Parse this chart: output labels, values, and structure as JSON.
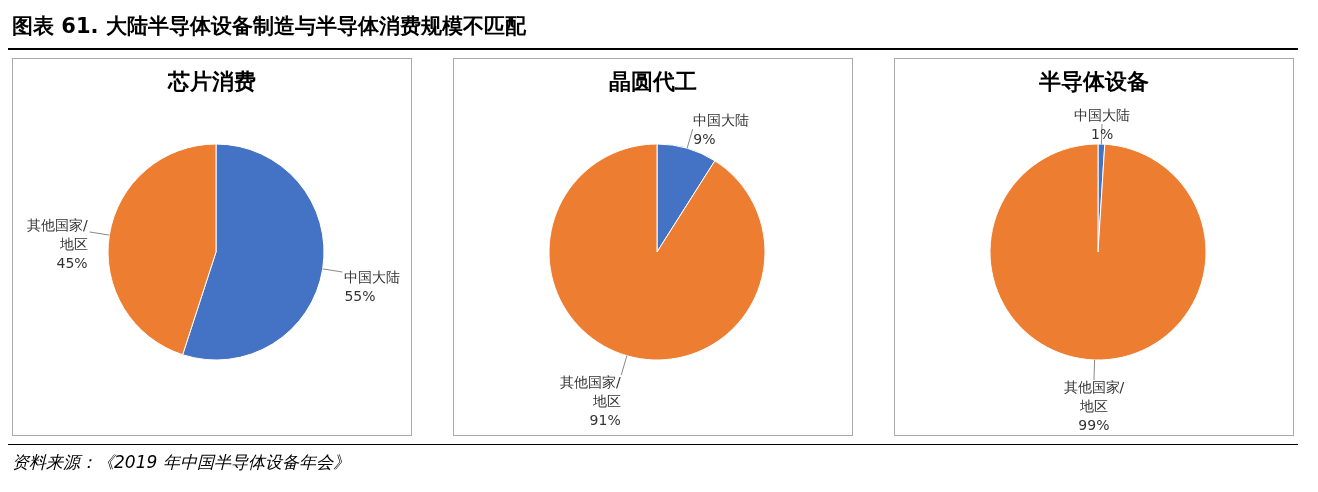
{
  "chart_data": [
    {
      "type": "pie",
      "title": "芯片消费",
      "categories": [
        "中国大陆",
        "其他国家/地区"
      ],
      "values": [
        55,
        45
      ],
      "value_labels": [
        "55%",
        "45%"
      ],
      "colors": [
        "#4472c4",
        "#ed7d31"
      ],
      "legend": false,
      "annotations": [
        "图表 61. 大陆半导体设备制造与半导体消费规模不匹配"
      ]
    },
    {
      "type": "pie",
      "title": "晶圆代工",
      "categories": [
        "中国大陆",
        "其他国家/地区"
      ],
      "values": [
        9,
        91
      ],
      "value_labels": [
        "9%",
        "91%"
      ],
      "colors": [
        "#4472c4",
        "#ed7d31"
      ],
      "legend": false
    },
    {
      "type": "pie",
      "title": "半导体设备",
      "categories": [
        "中国大陆",
        "其他国家/地区"
      ],
      "values": [
        1,
        99
      ],
      "value_labels": [
        "1%",
        "99%"
      ],
      "colors": [
        "#4472c4",
        "#ed7d31"
      ],
      "legend": false,
      "annotations": [
        "资料来源：《2019 年中国半导体设备年会》"
      ]
    }
  ]
}
